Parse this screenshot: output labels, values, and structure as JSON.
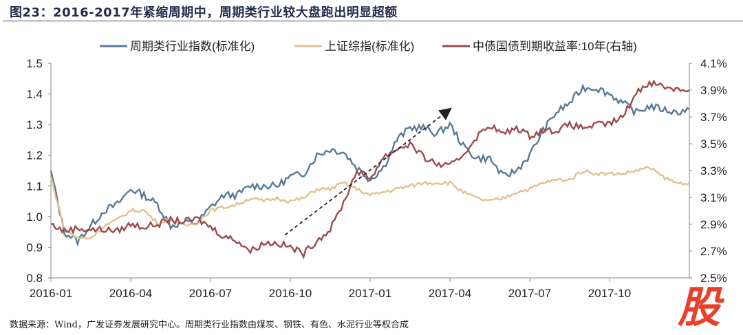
{
  "title": "图23：2016-2017年紧缩周期中，周期类行业较大盘跑出明显超额",
  "source": "数据来源：Wind，广发证券发展研究中心。周期类行业指数由煤炭、钢铁、有色、水泥行业等权合成",
  "logo_text": "股",
  "chart_data": {
    "type": "line",
    "x_unit": "months since 2016-01",
    "x_ticks": [
      0,
      3,
      6,
      9,
      12,
      15,
      18,
      21
    ],
    "x_tick_labels": [
      "2016-01",
      "2016-04",
      "2016-07",
      "2016-10",
      "2017-01",
      "2017-04",
      "2017-07",
      "2017-10"
    ],
    "xlim": [
      0,
      24
    ],
    "ylim": [
      0.8,
      1.5
    ],
    "y_ticks": [
      "0.8",
      "0.9",
      "1.0",
      "1.1",
      "1.2",
      "1.3",
      "1.4",
      "1.5"
    ],
    "y2lim": [
      2.5,
      4.1
    ],
    "y2_ticks": [
      "2.5%",
      "2.7%",
      "2.9%",
      "3.1%",
      "3.3%",
      "3.5%",
      "3.7%",
      "3.9%",
      "4.1%"
    ],
    "legend_position": "top",
    "x": [
      0,
      0.5,
      1,
      1.5,
      2,
      2.5,
      3,
      3.5,
      4,
      4.5,
      5,
      5.5,
      6,
      6.5,
      7,
      7.5,
      8,
      8.5,
      9,
      9.5,
      10,
      10.5,
      11,
      11.5,
      12,
      12.5,
      13,
      13.5,
      14,
      14.5,
      15,
      15.5,
      16,
      16.5,
      17,
      17.5,
      18,
      18.5,
      19,
      19.5,
      20,
      20.5,
      21,
      21.5,
      22,
      22.5,
      23,
      23.5,
      24
    ],
    "series": [
      {
        "name": "周期类行业指数(标准化)",
        "color": "#587a9a",
        "axis": "left",
        "values": [
          1.15,
          0.95,
          0.92,
          0.97,
          1.02,
          1.04,
          1.09,
          1.07,
          1.04,
          0.97,
          0.98,
          0.98,
          1.03,
          1.07,
          1.07,
          1.1,
          1.1,
          1.1,
          1.13,
          1.14,
          1.2,
          1.22,
          1.21,
          1.16,
          1.12,
          1.16,
          1.25,
          1.29,
          1.29,
          1.27,
          1.3,
          1.23,
          1.19,
          1.19,
          1.13,
          1.15,
          1.2,
          1.28,
          1.34,
          1.37,
          1.42,
          1.42,
          1.4,
          1.37,
          1.34,
          1.36,
          1.35,
          1.34,
          1.35
        ]
      },
      {
        "name": "上证综指(标准化)",
        "color": "#e3c08e",
        "axis": "left",
        "values": [
          1.13,
          0.96,
          0.93,
          0.93,
          0.97,
          0.99,
          1.02,
          1.02,
          0.98,
          0.99,
          0.97,
          0.98,
          1.02,
          1.03,
          1.04,
          1.06,
          1.05,
          1.06,
          1.05,
          1.06,
          1.09,
          1.09,
          1.11,
          1.09,
          1.07,
          1.08,
          1.09,
          1.1,
          1.11,
          1.11,
          1.11,
          1.08,
          1.06,
          1.05,
          1.06,
          1.08,
          1.09,
          1.11,
          1.12,
          1.12,
          1.15,
          1.14,
          1.14,
          1.14,
          1.15,
          1.16,
          1.13,
          1.11,
          1.11
        ]
      },
      {
        "name": "中债国债到期收益率:10年(右轴)",
        "color": "#9c4a4a",
        "axis": "right",
        "values": [
          2.9,
          2.85,
          2.87,
          2.86,
          2.86,
          2.85,
          2.9,
          2.88,
          2.9,
          2.93,
          2.92,
          2.94,
          2.88,
          2.81,
          2.78,
          2.7,
          2.76,
          2.76,
          2.73,
          2.68,
          2.78,
          2.86,
          3.06,
          3.3,
          3.24,
          3.4,
          3.46,
          3.5,
          3.4,
          3.35,
          3.33,
          3.42,
          3.55,
          3.64,
          3.57,
          3.62,
          3.56,
          3.6,
          3.6,
          3.64,
          3.62,
          3.64,
          3.65,
          3.7,
          3.88,
          3.96,
          3.93,
          3.91,
          3.9
        ]
      }
    ],
    "annotation_arrow": {
      "from": [
        8.8,
        0.94
      ],
      "to": [
        15.0,
        1.35
      ],
      "style": "dashed"
    }
  }
}
